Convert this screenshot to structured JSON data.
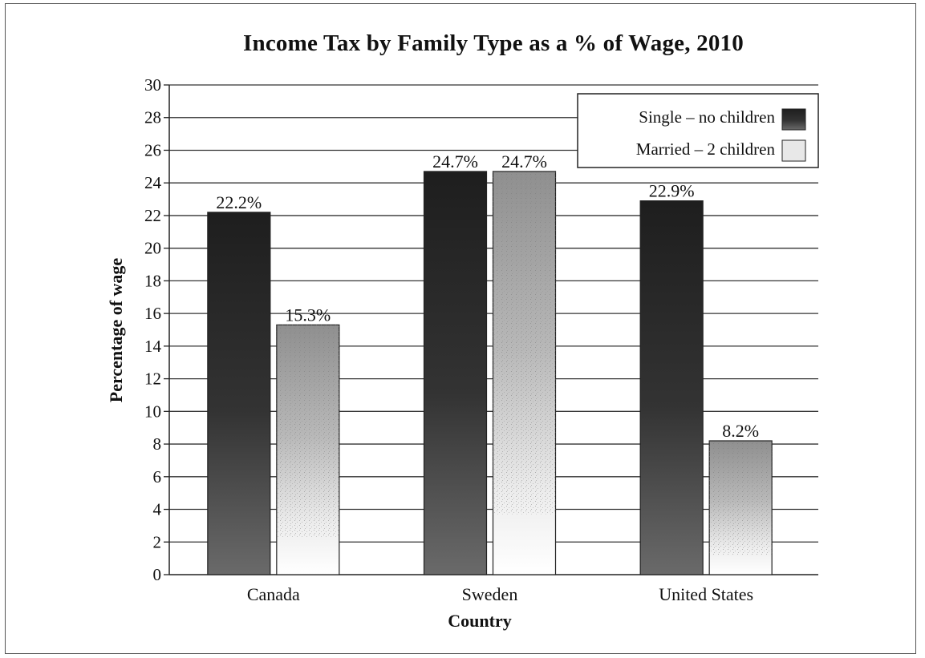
{
  "chart_data": {
    "type": "bar",
    "title": "Income Tax by Family Type as a % of Wage, 2010",
    "xlabel": "Country",
    "ylabel": "Percentage of wage",
    "categories": [
      "Canada",
      "Sweden",
      "United States"
    ],
    "series": [
      {
        "name": "Single – no children",
        "values": [
          22.2,
          24.7,
          22.9
        ],
        "labels": [
          "22.2%",
          "24.7%",
          "22.9%"
        ],
        "color": "#2b2b2b"
      },
      {
        "name": "Married – 2 children",
        "values": [
          15.3,
          24.7,
          8.2
        ],
        "labels": [
          "15.3%",
          "24.7%",
          "8.2%"
        ],
        "color": "#c8c8c8"
      }
    ],
    "ylim": [
      0,
      30
    ],
    "yticks": [
      "0",
      "2",
      "4",
      "6",
      "8",
      "10",
      "12",
      "14",
      "16",
      "18",
      "20",
      "22",
      "24",
      "26",
      "28",
      "30"
    ],
    "grid": true,
    "legend": "top-right"
  }
}
